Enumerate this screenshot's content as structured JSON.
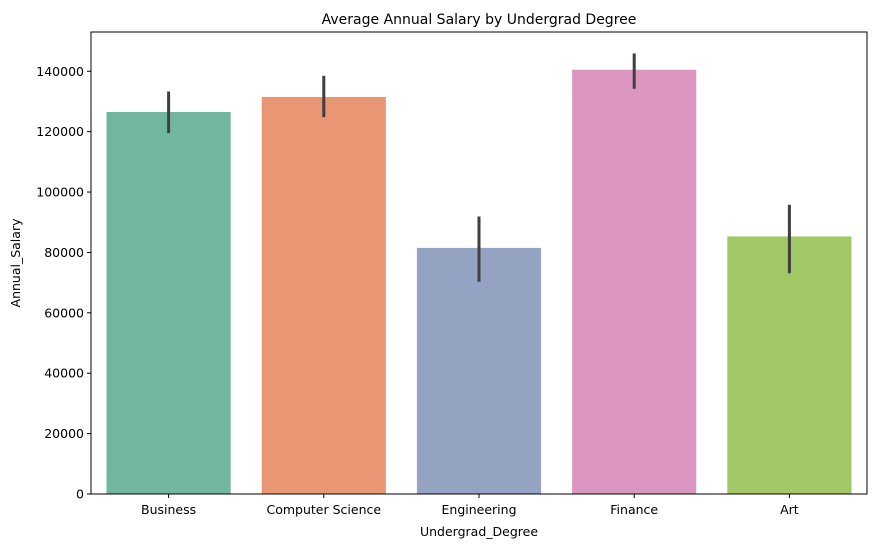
{
  "chart_data": {
    "type": "bar",
    "title": "Average Annual Salary by Undergrad Degree",
    "xlabel": "Undergrad_Degree",
    "ylabel": "Annual_Salary",
    "categories": [
      "Business",
      "Computer Science",
      "Engineering",
      "Finance",
      "Art"
    ],
    "values": [
      126500,
      131500,
      81500,
      140500,
      85300
    ],
    "error_low": [
      119500,
      124800,
      70300,
      134200,
      73100
    ],
    "error_high": [
      133300,
      138500,
      91900,
      145900,
      95800
    ],
    "colors": [
      "#72b6a1",
      "#e99675",
      "#95a3c3",
      "#db96c0",
      "#a2c865"
    ],
    "error_color": "#3f3f3f",
    "ylim": [
      0,
      153000
    ],
    "yticks": [
      0,
      20000,
      40000,
      60000,
      80000,
      100000,
      120000,
      140000
    ],
    "ytick_labels": [
      "0",
      "20000",
      "40000",
      "60000",
      "80000",
      "100000",
      "120000",
      "140000"
    ],
    "grid": false,
    "legend": "none"
  }
}
